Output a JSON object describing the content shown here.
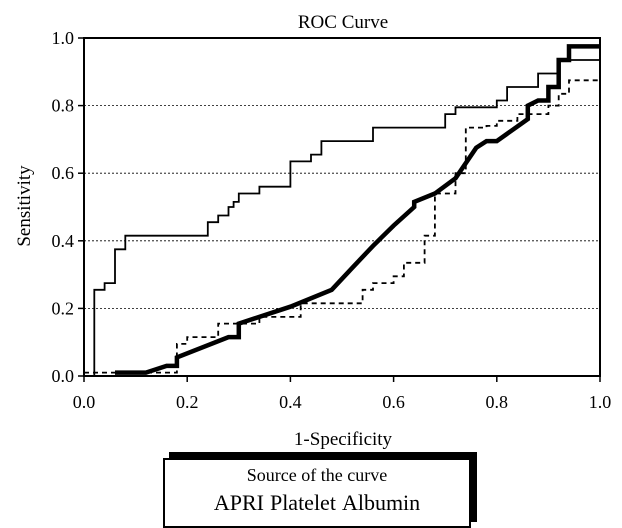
{
  "chart_data": {
    "type": "line",
    "title": "ROC Curve",
    "xlabel": "1-Specificity",
    "ylabel": "Sensitivity",
    "xlim": [
      0,
      1
    ],
    "ylim": [
      0,
      1
    ],
    "xticks": [
      "0.0",
      "0.2",
      "0.4",
      "0.6",
      "0.8",
      "1.0"
    ],
    "yticks": [
      "0.0",
      "0.2",
      "0.4",
      "0.6",
      "0.8",
      "1.0"
    ],
    "grid": "horizontal dotted",
    "legend": {
      "title": "Source of the curve",
      "items": [
        "APRI",
        "Platelet",
        "Albumin"
      ],
      "placement": "bottom"
    },
    "series": [
      {
        "name": "APRI",
        "style": "thin-solid",
        "color": "#000000",
        "x": [
          0.0,
          0.02,
          0.02,
          0.04,
          0.04,
          0.06,
          0.06,
          0.08,
          0.08,
          0.24,
          0.24,
          0.26,
          0.26,
          0.28,
          0.28,
          0.29,
          0.29,
          0.3,
          0.3,
          0.34,
          0.34,
          0.4,
          0.4,
          0.44,
          0.44,
          0.46,
          0.46,
          0.56,
          0.56,
          0.7,
          0.7,
          0.72,
          0.72,
          0.8,
          0.8,
          0.82,
          0.82,
          0.88,
          0.88,
          0.92,
          0.92,
          1.0
        ],
        "y": [
          0.0,
          0.0,
          0.255,
          0.255,
          0.275,
          0.275,
          0.375,
          0.375,
          0.415,
          0.415,
          0.455,
          0.455,
          0.475,
          0.475,
          0.5,
          0.5,
          0.515,
          0.515,
          0.54,
          0.54,
          0.56,
          0.56,
          0.635,
          0.635,
          0.655,
          0.655,
          0.695,
          0.695,
          0.735,
          0.735,
          0.775,
          0.775,
          0.795,
          0.795,
          0.815,
          0.815,
          0.855,
          0.855,
          0.895,
          0.895,
          0.935,
          0.935
        ]
      },
      {
        "name": "Platelet",
        "style": "thick-solid",
        "color": "#000000",
        "x": [
          0.06,
          0.12,
          0.16,
          0.18,
          0.18,
          0.28,
          0.3,
          0.3,
          0.4,
          0.48,
          0.52,
          0.56,
          0.6,
          0.64,
          0.64,
          0.68,
          0.72,
          0.76,
          0.78,
          0.8,
          0.86,
          0.86,
          0.88,
          0.9,
          0.9,
          0.92,
          0.92,
          0.94,
          0.94,
          1.0,
          1.0
        ],
        "y": [
          0.01,
          0.01,
          0.03,
          0.03,
          0.055,
          0.115,
          0.115,
          0.155,
          0.205,
          0.255,
          0.32,
          0.385,
          0.445,
          0.5,
          0.515,
          0.54,
          0.585,
          0.675,
          0.695,
          0.695,
          0.76,
          0.8,
          0.815,
          0.815,
          0.855,
          0.855,
          0.935,
          0.935,
          0.975,
          0.975,
          0.975
        ]
      },
      {
        "name": "Albumin",
        "style": "dashed",
        "color": "#000000",
        "x": [
          0.0,
          0.04,
          0.06,
          0.18,
          0.18,
          0.2,
          0.2,
          0.26,
          0.26,
          0.34,
          0.34,
          0.42,
          0.42,
          0.46,
          0.5,
          0.54,
          0.54,
          0.56,
          0.56,
          0.6,
          0.6,
          0.62,
          0.62,
          0.66,
          0.66,
          0.68,
          0.68,
          0.72,
          0.72,
          0.74,
          0.74,
          0.78,
          0.78,
          0.8,
          0.8,
          0.84,
          0.84,
          0.9,
          0.9,
          0.92,
          0.92,
          0.94,
          0.94,
          0.98,
          0.98,
          1.0
        ],
        "y": [
          0.01,
          0.01,
          0.01,
          0.01,
          0.095,
          0.095,
          0.115,
          0.115,
          0.155,
          0.155,
          0.175,
          0.175,
          0.215,
          0.215,
          0.215,
          0.215,
          0.255,
          0.255,
          0.275,
          0.275,
          0.295,
          0.295,
          0.335,
          0.335,
          0.415,
          0.415,
          0.54,
          0.54,
          0.6,
          0.6,
          0.735,
          0.735,
          0.74,
          0.74,
          0.755,
          0.755,
          0.775,
          0.775,
          0.8,
          0.8,
          0.835,
          0.835,
          0.875,
          0.875,
          0.875,
          0.875
        ]
      }
    ]
  }
}
